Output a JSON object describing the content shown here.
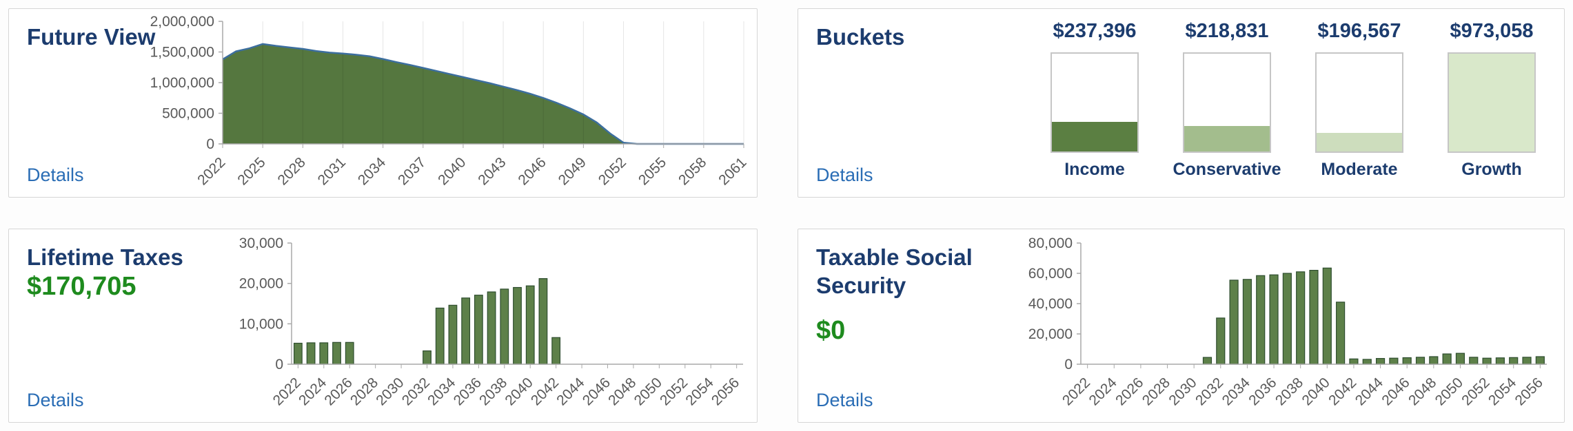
{
  "colors": {
    "navy": "#1c3c6e",
    "link": "#2a6db5",
    "green": "#1e8b1e"
  },
  "panels": {
    "future_view": {
      "title": "Future View",
      "details_label": "Details",
      "chart_data": {
        "type": "area",
        "x_start": 2022,
        "values": [
          1380000,
          1510000,
          1560000,
          1630000,
          1600000,
          1575000,
          1550000,
          1515000,
          1490000,
          1475000,
          1455000,
          1430000,
          1385000,
          1335000,
          1290000,
          1240000,
          1190000,
          1140000,
          1090000,
          1040000,
          990000,
          935000,
          880000,
          820000,
          750000,
          670000,
          580000,
          480000,
          350000,
          170000,
          20000,
          0,
          0,
          0,
          0,
          0,
          0,
          0,
          0,
          0
        ],
        "x_ticks": [
          2022,
          2025,
          2028,
          2031,
          2034,
          2037,
          2040,
          2043,
          2046,
          2049,
          2052,
          2055,
          2058,
          2061
        ],
        "y_ticks": [
          0,
          500000,
          1000000,
          1500000,
          2000000
        ],
        "y_tick_labels": [
          "0",
          "500,000",
          "1,000,000",
          "1,500,000",
          "2,000,000"
        ],
        "ylim": [
          0,
          2000000
        ],
        "fill": "#55773f",
        "line": "#3c6e9e"
      }
    },
    "buckets": {
      "title": "Buckets",
      "details_label": "Details",
      "items": [
        {
          "label": "Income",
          "amount": "$237,396",
          "fill_percent": 30,
          "color": "#5b7f42"
        },
        {
          "label": "Conservative",
          "amount": "$218,831",
          "fill_percent": 26,
          "color": "#a3bd8d"
        },
        {
          "label": "Moderate",
          "amount": "$196,567",
          "fill_percent": 19,
          "color": "#cdddbd"
        },
        {
          "label": "Growth",
          "amount": "$973,058",
          "fill_percent": 100,
          "color": "#d9e8ca"
        }
      ]
    },
    "lifetime_taxes": {
      "title": "Lifetime Taxes",
      "amount": "$170,705",
      "details_label": "Details",
      "chart_data": {
        "type": "bar",
        "x_start": 2022,
        "values": [
          5200,
          5300,
          5300,
          5400,
          5400,
          0,
          0,
          0,
          0,
          0,
          3300,
          13900,
          14600,
          16400,
          17100,
          17900,
          18600,
          19000,
          19400,
          21200,
          6600,
          0,
          0,
          0,
          0,
          0,
          0,
          0,
          0,
          0,
          0,
          0,
          0,
          0,
          0
        ],
        "x_ticks": [
          2022,
          2024,
          2026,
          2028,
          2030,
          2032,
          2034,
          2036,
          2038,
          2040,
          2042,
          2044,
          2046,
          2048,
          2050,
          2052,
          2054,
          2056
        ],
        "y_ticks": [
          0,
          10000,
          20000,
          30000
        ],
        "y_tick_labels": [
          "0",
          "10,000",
          "20,000",
          "30,000"
        ],
        "ylim": [
          0,
          30000
        ],
        "fill": "#5d8049",
        "stroke": "#2e4d2f"
      }
    },
    "taxable_social_security": {
      "title": "Taxable Social Security",
      "amount": "$0",
      "details_label": "Details",
      "chart_data": {
        "type": "bar",
        "x_start": 2022,
        "values": [
          0,
          0,
          0,
          0,
          0,
          0,
          0,
          0,
          0,
          4500,
          30500,
          55500,
          56000,
          58500,
          59000,
          60000,
          61000,
          62000,
          63500,
          41000,
          3500,
          3200,
          3800,
          4000,
          4300,
          4600,
          5000,
          6800,
          7200,
          4600,
          4000,
          4200,
          4400,
          4600,
          5000
        ],
        "x_ticks": [
          2022,
          2024,
          2026,
          2028,
          2030,
          2032,
          2034,
          2036,
          2038,
          2040,
          2042,
          2044,
          2046,
          2048,
          2050,
          2052,
          2054,
          2056
        ],
        "y_ticks": [
          0,
          20000,
          40000,
          60000,
          80000
        ],
        "y_tick_labels": [
          "0",
          "20,000",
          "40,000",
          "60,000",
          "80,000"
        ],
        "ylim": [
          0,
          80000
        ],
        "fill": "#5d8049",
        "stroke": "#2e4d2f"
      }
    }
  }
}
